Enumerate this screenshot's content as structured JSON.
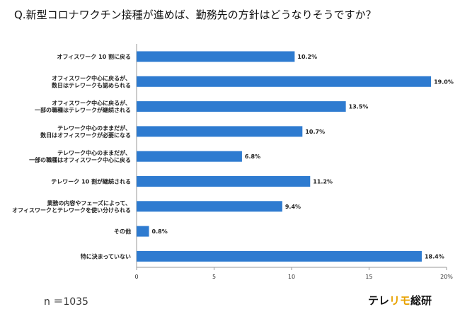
{
  "title": "Q.新型コロナワクチン接種が進めば、勤務先の方針はどうなりそうですか？",
  "sample_size": "n ＝1035",
  "logo": {
    "part1": "テレ",
    "part2": "リモ",
    "part3": "総研"
  },
  "colors": {
    "bar": "#2e7bd0",
    "axis": "#999999",
    "grid": "#dddddd"
  },
  "chart_data": {
    "type": "bar",
    "orientation": "horizontal",
    "categories": [
      [
        "オフィスワーク 10 割に戻る"
      ],
      [
        "オフィスワーク中心に戻るが、",
        "数日はテレワークも認められる"
      ],
      [
        "オフィスワーク中心に戻るが、",
        "一部の職種はテレワークが継続される"
      ],
      [
        "テレワーク中心のままだが、",
        "数日はオフィスワークが必要になる"
      ],
      [
        "テレワーク中心のままだが、",
        "一部の職種はオフィスワーク中心に戻る"
      ],
      [
        "テレワーク 10 割が継続される"
      ],
      [
        "業務の内容やフェーズによって、",
        "オフィスワークとテレワークを使い分けられる"
      ],
      [
        "その他"
      ],
      [
        "特に決まっていない"
      ]
    ],
    "values": [
      10.2,
      19.0,
      13.5,
      10.7,
      6.8,
      11.2,
      9.4,
      0.8,
      18.4
    ],
    "value_labels": [
      "10.2%",
      "19.0%",
      "13.5%",
      "10.7%",
      "6.8%",
      "11.2%",
      "9.4%",
      "0.8%",
      "18.4%"
    ],
    "xlim": [
      0,
      20
    ],
    "xticks": [
      0,
      5,
      10,
      15,
      20
    ],
    "xtick_labels": [
      "0",
      "5",
      "10",
      "15",
      "20%"
    ],
    "title": "Q.新型コロナワクチン接種が進めば、勤務先の方針はどうなりそうですか？",
    "xlabel": "",
    "ylabel": "",
    "grid": false,
    "legend": "none"
  }
}
